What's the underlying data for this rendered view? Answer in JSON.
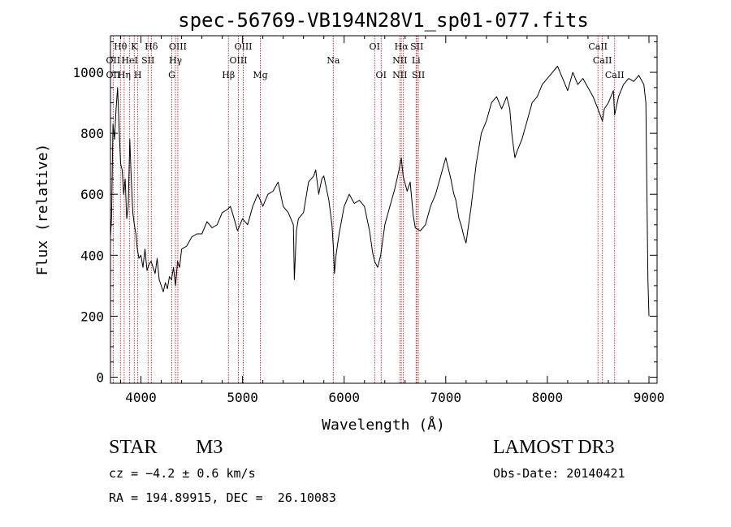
{
  "chart_data": {
    "type": "line",
    "title": "spec-56769-VB194N28V1_sp01-077.fits",
    "xlabel": "Wavelength (Å)",
    "ylabel": "Flux (relative)",
    "xlim": [
      3700,
      9080
    ],
    "ylim": [
      -20,
      1120
    ],
    "x_ticks": [
      4000,
      5000,
      6000,
      7000,
      8000,
      9000
    ],
    "x_tick_labels": [
      "4000",
      "5000",
      "6000",
      "7000",
      "8000",
      "9000"
    ],
    "y_ticks": [
      0,
      200,
      400,
      600,
      800,
      1000
    ],
    "y_tick_labels": [
      "0",
      "200",
      "400",
      "600",
      "800",
      "1000"
    ],
    "grid": false,
    "series": [
      {
        "color": "#000000",
        "x": [
          3700,
          3710,
          3725,
          3740,
          3755,
          3770,
          3785,
          3800,
          3815,
          3830,
          3845,
          3860,
          3875,
          3890,
          3905,
          3920,
          3935,
          3950,
          3965,
          3980,
          4000,
          4020,
          4040,
          4060,
          4080,
          4100,
          4120,
          4140,
          4160,
          4180,
          4200,
          4220,
          4240,
          4260,
          4280,
          4300,
          4320,
          4340,
          4360,
          4380,
          4400,
          4450,
          4500,
          4550,
          4600,
          4650,
          4700,
          4750,
          4800,
          4850,
          4880,
          4900,
          4950,
          5000,
          5050,
          5100,
          5150,
          5200,
          5250,
          5300,
          5350,
          5400,
          5450,
          5500,
          5510,
          5530,
          5550,
          5600,
          5650,
          5700,
          5720,
          5750,
          5780,
          5800,
          5850,
          5880,
          5895,
          5905,
          5920,
          5950,
          6000,
          6050,
          6100,
          6150,
          6200,
          6250,
          6280,
          6300,
          6330,
          6360,
          6400,
          6450,
          6500,
          6540,
          6563,
          6580,
          6620,
          6650,
          6680,
          6700,
          6750,
          6800,
          6850,
          6900,
          6950,
          7000,
          7050,
          7080,
          7100,
          7130,
          7150,
          7180,
          7200,
          7250,
          7300,
          7350,
          7400,
          7450,
          7500,
          7550,
          7600,
          7630,
          7650,
          7665,
          7680,
          7700,
          7750,
          7800,
          7850,
          7900,
          7950,
          8000,
          8050,
          8100,
          8150,
          8200,
          8250,
          8300,
          8350,
          8400,
          8450,
          8498,
          8520,
          8542,
          8560,
          8600,
          8650,
          8662,
          8700,
          8750,
          8800,
          8850,
          8900,
          8950,
          8970,
          8990,
          9000
        ],
        "y": [
          460,
          520,
          830,
          780,
          880,
          950,
          820,
          700,
          680,
          600,
          650,
          520,
          560,
          780,
          650,
          540,
          500,
          470,
          420,
          390,
          400,
          360,
          420,
          350,
          370,
          380,
          360,
          340,
          390,
          320,
          300,
          280,
          310,
          290,
          330,
          320,
          360,
          300,
          380,
          360,
          420,
          430,
          460,
          470,
          470,
          510,
          490,
          500,
          540,
          550,
          560,
          540,
          480,
          520,
          500,
          560,
          600,
          560,
          600,
          610,
          640,
          560,
          540,
          500,
          320,
          480,
          520,
          540,
          640,
          660,
          680,
          600,
          650,
          660,
          580,
          500,
          420,
          340,
          400,
          470,
          560,
          600,
          570,
          580,
          560,
          480,
          410,
          380,
          360,
          400,
          500,
          560,
          620,
          680,
          720,
          660,
          610,
          640,
          530,
          490,
          480,
          500,
          560,
          600,
          660,
          720,
          650,
          600,
          580,
          520,
          500,
          460,
          440,
          560,
          700,
          800,
          840,
          900,
          920,
          880,
          920,
          880,
          800,
          760,
          720,
          740,
          780,
          840,
          900,
          920,
          960,
          980,
          1000,
          1020,
          980,
          940,
          1000,
          960,
          980,
          950,
          920,
          880,
          860,
          840,
          880,
          900,
          940,
          860,
          920,
          960,
          980,
          970,
          990,
          960,
          900,
          320,
          200
        ]
      }
    ],
    "lines": [
      {
        "name": "OII",
        "x": 3727
      },
      {
        "name": "Hθ",
        "x": 3798
      },
      {
        "name": "Hη",
        "x": 3835
      },
      {
        "name": "HeI",
        "x": 3889
      },
      {
        "name": "K",
        "x": 3934
      },
      {
        "name": "H",
        "x": 3969
      },
      {
        "name": "SII",
        "x": 4070
      },
      {
        "name": "Hδ",
        "x": 4102
      },
      {
        "name": "G",
        "x": 4304
      },
      {
        "name": "Hγ",
        "x": 4340
      },
      {
        "name": "OIII",
        "x": 4363
      },
      {
        "name": "Hβ",
        "x": 4861
      },
      {
        "name": "OIII",
        "x": 4959
      },
      {
        "name": "OIII",
        "x": 5007
      },
      {
        "name": "Mg",
        "x": 5175
      },
      {
        "name": "Na",
        "x": 5893
      },
      {
        "name": "OI",
        "x": 6300
      },
      {
        "name": "OI",
        "x": 6364
      },
      {
        "name": "NII",
        "x": 6548
      },
      {
        "name": "Hα",
        "x": 6563
      },
      {
        "name": "NII",
        "x": 6583
      },
      {
        "name": "Li",
        "x": 6708
      },
      {
        "name": "SII",
        "x": 6716
      },
      {
        "name": "SII",
        "x": 6731
      },
      {
        "name": "CaII",
        "x": 8498
      },
      {
        "name": "CaII",
        "x": 8542
      },
      {
        "name": "CaII",
        "x": 8662
      }
    ],
    "labels": [
      {
        "text": "OII",
        "x": 3727,
        "row": 2
      },
      {
        "text": "OII",
        "x": 3727,
        "row": 3
      },
      {
        "text": "Hθ",
        "x": 3798,
        "row": 1
      },
      {
        "text": "Hη",
        "x": 3835,
        "row": 3
      },
      {
        "text": "HeI",
        "x": 3889,
        "row": 2
      },
      {
        "text": "K",
        "x": 3934,
        "row": 1
      },
      {
        "text": "H",
        "x": 3969,
        "row": 3
      },
      {
        "text": "SII",
        "x": 4070,
        "row": 2
      },
      {
        "text": "Hδ",
        "x": 4102,
        "row": 1
      },
      {
        "text": "G",
        "x": 4304,
        "row": 3
      },
      {
        "text": "Hγ",
        "x": 4340,
        "row": 2
      },
      {
        "text": "OIII",
        "x": 4363,
        "row": 1
      },
      {
        "text": "Hβ",
        "x": 4861,
        "row": 3
      },
      {
        "text": "OIII",
        "x": 4959,
        "row": 2
      },
      {
        "text": "OIII",
        "x": 5007,
        "row": 1
      },
      {
        "text": "Mg",
        "x": 5175,
        "row": 3
      },
      {
        "text": "Na",
        "x": 5893,
        "row": 2
      },
      {
        "text": "OI",
        "x": 6300,
        "row": 1
      },
      {
        "text": "OI",
        "x": 6364,
        "row": 3
      },
      {
        "text": "NII",
        "x": 6548,
        "row": 2
      },
      {
        "text": "NII",
        "x": 6548,
        "row": 3
      },
      {
        "text": "Hα",
        "x": 6563,
        "row": 1
      },
      {
        "text": "SII",
        "x": 6716,
        "row": 1
      },
      {
        "text": "Li",
        "x": 6708,
        "row": 2
      },
      {
        "text": "SII",
        "x": 6731,
        "row": 3
      },
      {
        "text": "CaII",
        "x": 8498,
        "row": 1
      },
      {
        "text": "CaII",
        "x": 8542,
        "row": 2
      },
      {
        "text": "CaII",
        "x": 8662,
        "row": 3
      }
    ]
  },
  "info": {
    "class_label": "STAR",
    "subclass": "M3",
    "survey": "LAMOST DR3",
    "cz": "cz = −4.2 ± 0.6 km/s",
    "obs_date": "Obs-Date: 20140421",
    "radec": "RA = 194.89915, DEC =  26.10083"
  }
}
